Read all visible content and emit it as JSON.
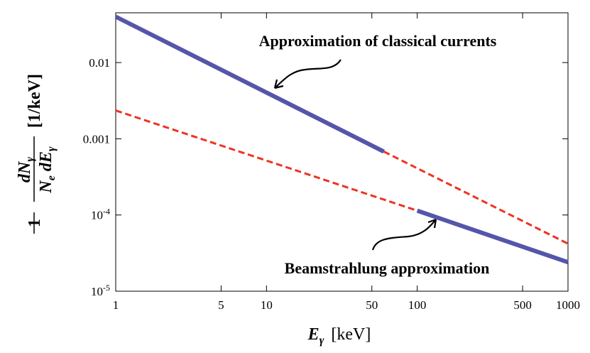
{
  "chart_data": {
    "type": "line",
    "xscale": "log",
    "yscale": "log",
    "xlim": [
      1,
      1000
    ],
    "ylim": [
      1e-05,
      0.045
    ],
    "xticks": [
      1,
      5,
      10,
      50,
      100,
      500,
      1000
    ],
    "yticks": [
      0.01,
      0.001,
      {
        "value": 0.0001,
        "label": "10",
        "exponent": "-4"
      },
      {
        "value": 1e-05,
        "label": "10",
        "exponent": "-5"
      }
    ],
    "x_label": {
      "symbol": "E",
      "subscript": "γ",
      "unit": "[keV]"
    },
    "y_label": {
      "factor": "1",
      "numerator": "dN",
      "numerator_subscript": "γ",
      "denominator": "N",
      "denominator_subscript": "e",
      "denominator_tail": " dE",
      "denominator_tail_subscript": "γ",
      "unit": "[1/keV]"
    },
    "annotations": [
      "Approximation of classical currents",
      "Beamstrahlung approximation"
    ],
    "series": [
      {
        "color": "#5555aa",
        "style": "solid",
        "x": [
          1,
          60
        ],
        "values": [
          0.04,
          0.00068
        ]
      },
      {
        "color": "#ee3322",
        "style": "dashed",
        "x": [
          60,
          1000
        ],
        "values": [
          0.00068,
          4.2e-05
        ]
      },
      {
        "color": "#ee3322",
        "style": "dashed",
        "x": [
          1,
          100
        ],
        "values": [
          0.00235,
          0.000114
        ]
      },
      {
        "color": "#5555aa",
        "style": "solid",
        "x": [
          100,
          1000
        ],
        "values": [
          0.000114,
          2.4e-05
        ]
      }
    ]
  }
}
